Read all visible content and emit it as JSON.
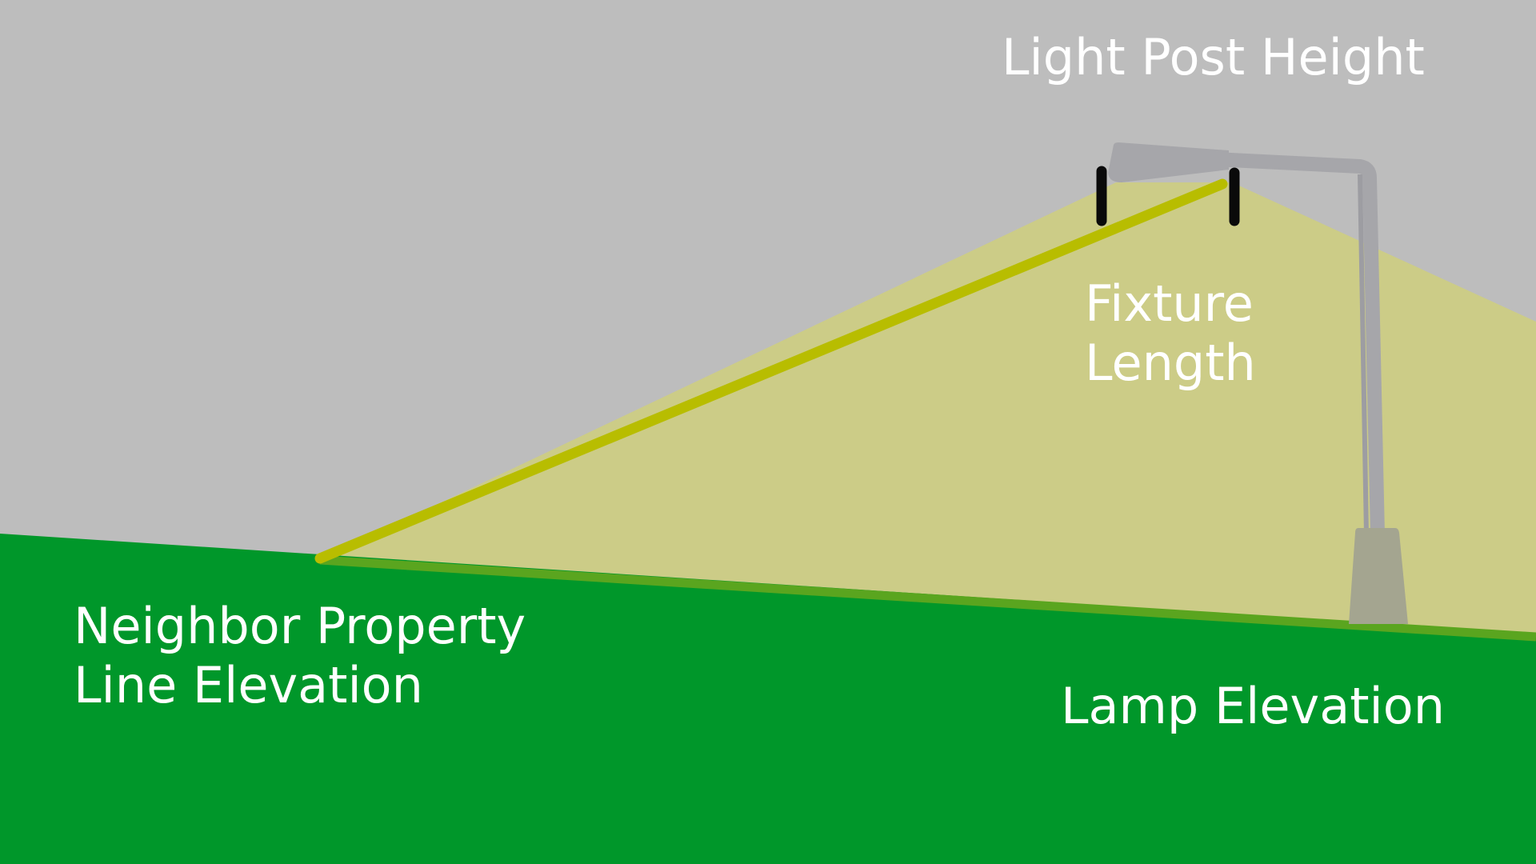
{
  "diagram": {
    "labels": {
      "light_post_height": "Light Post Height",
      "fixture_length": [
        "Fixture",
        "Length"
      ],
      "neighbor_property_line_elevation": [
        "Neighbor Property",
        "Line Elevation"
      ],
      "lamp_elevation": "Lamp Elevation"
    },
    "colors": {
      "sky": "#bdbdbd",
      "ground": "#00972a",
      "ground_edge": "#5aa51f",
      "light_cone": "#cccc87",
      "light_ray": "#b8bd00",
      "pole": "#a6a6aa",
      "pole_base": "#a4a590",
      "marker": "#0a0a0a",
      "text": "#ffffff"
    }
  }
}
